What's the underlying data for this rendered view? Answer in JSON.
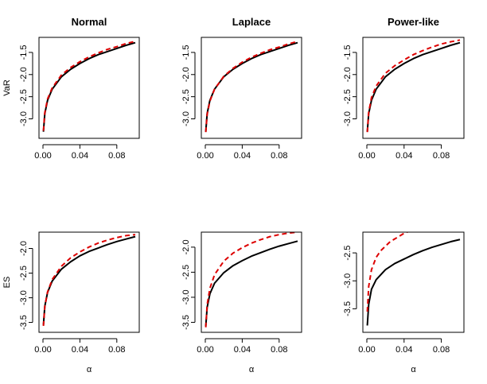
{
  "chart_data": [
    {
      "type": "line",
      "title": "Normal",
      "xlabel": "",
      "ylabel": "VaR",
      "xlim": [
        0,
        0.1
      ],
      "ylim": [
        -3.35,
        -1.25
      ],
      "xticks": [
        0.0,
        0.04,
        0.08
      ],
      "xtick_labels": [
        "0.00",
        "0.04",
        "0.08"
      ],
      "yticks": [
        -3.0,
        -2.5,
        -2.0,
        -1.5
      ],
      "ytick_labels": [
        "-3.0",
        "-2.5",
        "-2.0",
        "-1.5"
      ],
      "series": [
        {
          "color": "#000000",
          "dash": "solid",
          "x": [
            0.0005,
            0.002,
            0.005,
            0.01,
            0.02,
            0.03,
            0.04,
            0.05,
            0.06,
            0.07,
            0.08,
            0.09,
            0.1
          ],
          "y": [
            -3.29,
            -2.88,
            -2.58,
            -2.33,
            -2.05,
            -1.88,
            -1.75,
            -1.64,
            -1.55,
            -1.48,
            -1.41,
            -1.34,
            -1.28
          ]
        },
        {
          "color": "#dd0000",
          "dash": "dashed",
          "x": [
            0.0005,
            0.002,
            0.005,
            0.01,
            0.02,
            0.03,
            0.04,
            0.05,
            0.06,
            0.07,
            0.08,
            0.09,
            0.1
          ],
          "y": [
            -3.27,
            -2.86,
            -2.55,
            -2.3,
            -2.01,
            -1.84,
            -1.71,
            -1.6,
            -1.51,
            -1.43,
            -1.37,
            -1.3,
            -1.25
          ]
        }
      ]
    },
    {
      "type": "line",
      "title": "Laplace",
      "xlabel": "",
      "ylabel": "",
      "xlim": [
        0,
        0.1
      ],
      "ylim": [
        -3.35,
        -1.25
      ],
      "xticks": [
        0.0,
        0.04,
        0.08
      ],
      "xtick_labels": [
        "0.00",
        "0.04",
        "0.08"
      ],
      "yticks": [
        -3.0,
        -2.5,
        -2.0,
        -1.5
      ],
      "ytick_labels": [
        "-3.0",
        "-2.5",
        "-2.0",
        "-1.5"
      ],
      "series": [
        {
          "color": "#000000",
          "dash": "solid",
          "x": [
            0.0005,
            0.002,
            0.005,
            0.01,
            0.02,
            0.03,
            0.04,
            0.05,
            0.06,
            0.07,
            0.08,
            0.09,
            0.1
          ],
          "y": [
            -3.29,
            -2.88,
            -2.58,
            -2.33,
            -2.05,
            -1.88,
            -1.75,
            -1.64,
            -1.55,
            -1.48,
            -1.41,
            -1.34,
            -1.28
          ]
        },
        {
          "color": "#dd0000",
          "dash": "dashed",
          "x": [
            0.0005,
            0.002,
            0.005,
            0.01,
            0.02,
            0.03,
            0.04,
            0.05,
            0.06,
            0.07,
            0.08,
            0.09,
            0.1
          ],
          "y": [
            -3.3,
            -2.9,
            -2.6,
            -2.33,
            -2.04,
            -1.86,
            -1.72,
            -1.61,
            -1.52,
            -1.44,
            -1.38,
            -1.31,
            -1.25
          ]
        }
      ]
    },
    {
      "type": "line",
      "title": "Power-like",
      "xlabel": "",
      "ylabel": "",
      "xlim": [
        0,
        0.1
      ],
      "ylim": [
        -3.35,
        -1.25
      ],
      "xticks": [
        0.0,
        0.04,
        0.08
      ],
      "xtick_labels": [
        "0.00",
        "0.04",
        "0.08"
      ],
      "yticks": [
        -3.0,
        -2.5,
        -2.0,
        -1.5
      ],
      "ytick_labels": [
        "-3.0",
        "-2.5",
        "-2.0",
        "-1.5"
      ],
      "series": [
        {
          "color": "#000000",
          "dash": "solid",
          "x": [
            0.0005,
            0.002,
            0.005,
            0.01,
            0.02,
            0.03,
            0.04,
            0.05,
            0.06,
            0.07,
            0.08,
            0.09,
            0.1
          ],
          "y": [
            -3.29,
            -2.88,
            -2.58,
            -2.33,
            -2.05,
            -1.88,
            -1.75,
            -1.64,
            -1.55,
            -1.48,
            -1.41,
            -1.34,
            -1.28
          ]
        },
        {
          "color": "#dd0000",
          "dash": "dashed",
          "x": [
            0.0005,
            0.002,
            0.005,
            0.01,
            0.02,
            0.03,
            0.04,
            0.05,
            0.06,
            0.07,
            0.08,
            0.09,
            0.1
          ],
          "y": [
            -3.3,
            -2.85,
            -2.52,
            -2.26,
            -1.97,
            -1.8,
            -1.67,
            -1.55,
            -1.46,
            -1.38,
            -1.31,
            -1.26,
            -1.22
          ]
        }
      ]
    },
    {
      "type": "line",
      "title": "",
      "xlabel": "α",
      "ylabel": "ES",
      "xlim": [
        0,
        0.1
      ],
      "ylim": [
        -3.62,
        -1.75
      ],
      "xticks": [
        0.0,
        0.04,
        0.08
      ],
      "xtick_labels": [
        "0.00",
        "0.04",
        "0.08"
      ],
      "yticks": [
        -3.5,
        -3.0,
        -2.5,
        -2.0
      ],
      "ytick_labels": [
        "-3.5",
        "-3.0",
        "-2.5",
        "-2.0"
      ],
      "series": [
        {
          "color": "#000000",
          "dash": "solid",
          "x": [
            0.0005,
            0.002,
            0.005,
            0.01,
            0.02,
            0.03,
            0.04,
            0.05,
            0.06,
            0.07,
            0.08,
            0.09,
            0.1
          ],
          "y": [
            -3.55,
            -3.17,
            -2.89,
            -2.66,
            -2.42,
            -2.27,
            -2.15,
            -2.06,
            -1.99,
            -1.92,
            -1.86,
            -1.81,
            -1.76
          ]
        },
        {
          "color": "#dd0000",
          "dash": "dashed",
          "x": [
            0.0005,
            0.002,
            0.005,
            0.01,
            0.02,
            0.03,
            0.04,
            0.05,
            0.06,
            0.07,
            0.08,
            0.09,
            0.1
          ],
          "y": [
            -3.57,
            -3.18,
            -2.88,
            -2.63,
            -2.36,
            -2.19,
            -2.07,
            -1.97,
            -1.89,
            -1.83,
            -1.78,
            -1.74,
            -1.72
          ]
        }
      ]
    },
    {
      "type": "line",
      "title": "",
      "xlabel": "α",
      "ylabel": "",
      "xlim": [
        0,
        0.1
      ],
      "ylim": [
        -3.62,
        -1.78
      ],
      "xticks": [
        0.0,
        0.04,
        0.08
      ],
      "xtick_labels": [
        "0.00",
        "0.04",
        "0.08"
      ],
      "yticks": [
        -3.5,
        -3.0,
        -2.5,
        -2.0
      ],
      "ytick_labels": [
        "-3.5",
        "-3.0",
        "-2.5",
        "-2.0"
      ],
      "series": [
        {
          "color": "#000000",
          "dash": "solid",
          "x": [
            0.0005,
            0.002,
            0.005,
            0.01,
            0.02,
            0.03,
            0.04,
            0.05,
            0.06,
            0.07,
            0.08,
            0.09,
            0.1
          ],
          "y": [
            -3.58,
            -3.2,
            -2.93,
            -2.72,
            -2.51,
            -2.37,
            -2.27,
            -2.18,
            -2.11,
            -2.04,
            -1.98,
            -1.93,
            -1.88
          ]
        },
        {
          "color": "#dd0000",
          "dash": "dashed",
          "x": [
            0.0005,
            0.002,
            0.005,
            0.01,
            0.02,
            0.03,
            0.04,
            0.05,
            0.06,
            0.07,
            0.08,
            0.09,
            0.1
          ],
          "y": [
            -3.6,
            -3.15,
            -2.82,
            -2.55,
            -2.28,
            -2.12,
            -2.01,
            -1.92,
            -1.85,
            -1.79,
            -1.75,
            -1.72,
            -1.7
          ]
        }
      ]
    },
    {
      "type": "line",
      "title": "",
      "xlabel": "α",
      "ylabel": "",
      "xlim": [
        0,
        0.1
      ],
      "ylim": [
        -3.85,
        -2.2
      ],
      "xticks": [
        0.0,
        0.04,
        0.08
      ],
      "xtick_labels": [
        "0.00",
        "0.04",
        "0.08"
      ],
      "yticks": [
        -3.5,
        -3.0,
        -2.5
      ],
      "ytick_labels": [
        "-3.5",
        "-3.0",
        "-2.5"
      ],
      "series": [
        {
          "color": "#000000",
          "dash": "solid",
          "x": [
            0.0005,
            0.002,
            0.005,
            0.01,
            0.02,
            0.03,
            0.04,
            0.05,
            0.06,
            0.07,
            0.08,
            0.09,
            0.1
          ],
          "y": [
            -3.8,
            -3.42,
            -3.15,
            -2.98,
            -2.8,
            -2.69,
            -2.61,
            -2.53,
            -2.46,
            -2.4,
            -2.35,
            -2.3,
            -2.26
          ]
        },
        {
          "color": "#dd0000",
          "dash": "dashed",
          "x": [
            0.0005,
            0.002,
            0.005,
            0.01,
            0.015,
            0.02,
            0.025,
            0.03,
            0.035,
            0.04,
            0.05
          ],
          "y": [
            -3.55,
            -3.1,
            -2.8,
            -2.58,
            -2.46,
            -2.38,
            -2.3,
            -2.25,
            -2.2,
            -2.15,
            -2.08
          ]
        }
      ]
    }
  ]
}
